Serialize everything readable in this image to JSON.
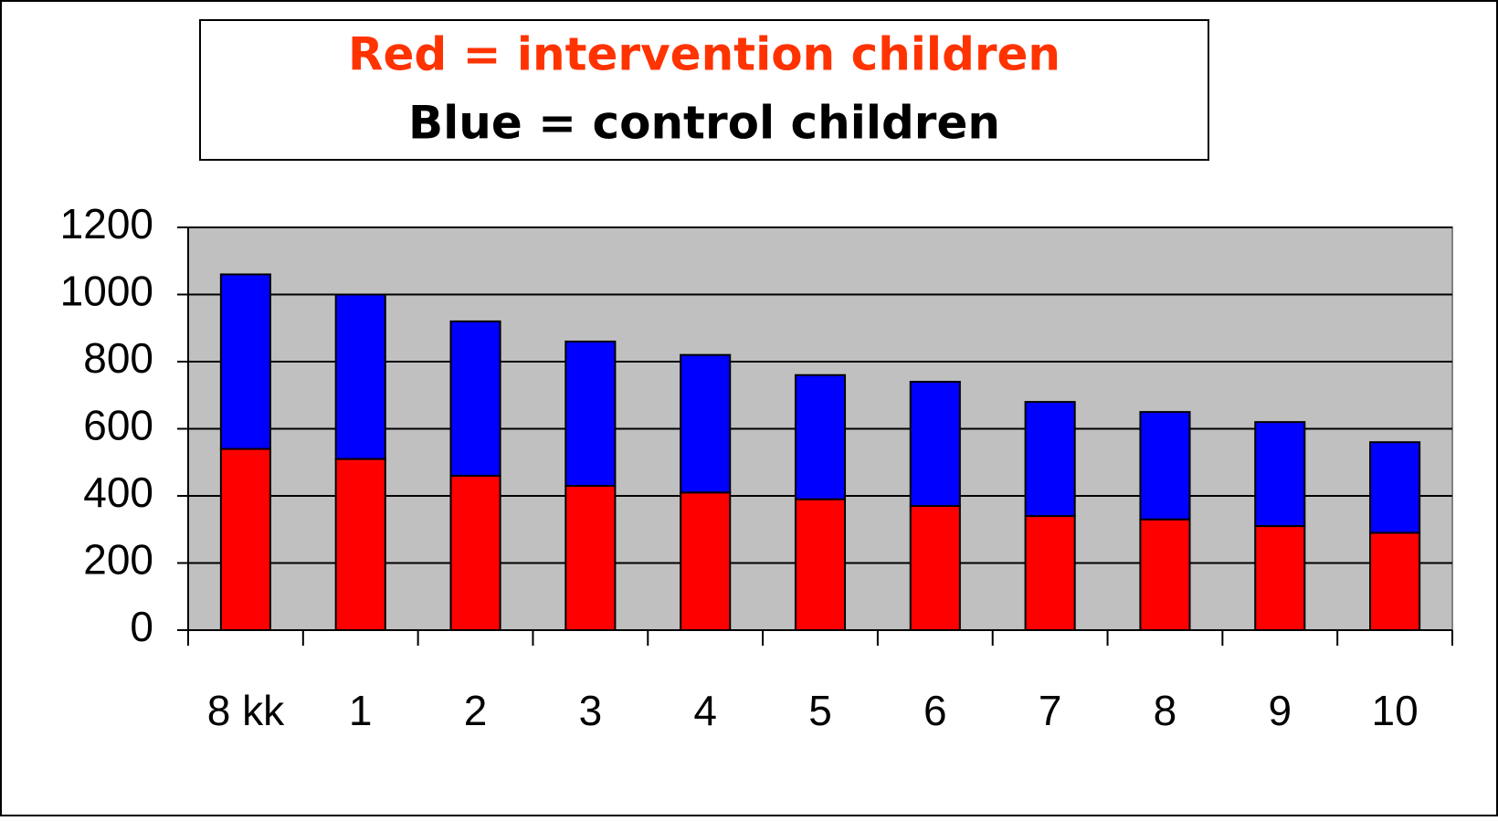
{
  "chart_data": {
    "type": "stacked_bar",
    "categories": [
      "8 kk",
      "1",
      "2",
      "3",
      "4",
      "5",
      "6",
      "7",
      "8",
      "9",
      "10"
    ],
    "series": [
      {
        "name": "Red = intervention children",
        "color": "#ff0000",
        "values": [
          540,
          510,
          460,
          430,
          410,
          390,
          370,
          340,
          330,
          310,
          290
        ]
      },
      {
        "name": "Blue = control children",
        "color": "#0000ff",
        "values": [
          520,
          490,
          460,
          430,
          410,
          370,
          370,
          340,
          320,
          310,
          270
        ]
      }
    ],
    "ylim": [
      0,
      1200
    ],
    "yticks": [
      0,
      200,
      400,
      600,
      800,
      1000,
      1200
    ],
    "grid": true
  }
}
